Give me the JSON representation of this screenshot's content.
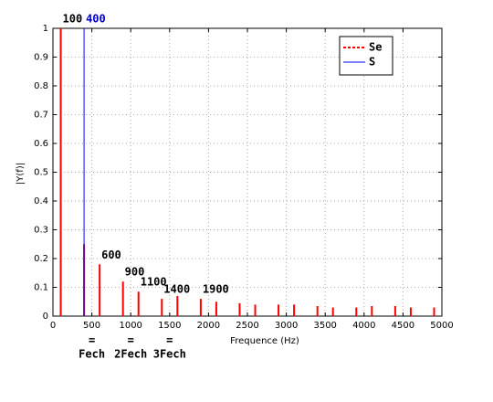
{
  "chart_data": {
    "type": "stem",
    "xlabel": "Frequence (Hz)",
    "ylabel": "|Y(f)|",
    "xlim": [
      0,
      5000
    ],
    "ylim": [
      0,
      1
    ],
    "xticks": [
      0,
      500,
      1000,
      1500,
      2000,
      2500,
      3000,
      3500,
      4000,
      4500,
      5000
    ],
    "yticks": [
      0,
      0.1,
      0.2,
      0.3,
      0.4,
      0.5,
      0.6,
      0.7,
      0.8,
      0.9,
      1
    ],
    "grid": true,
    "legend": "upper right",
    "series": [
      {
        "name": "Se",
        "color": "#ff0000",
        "line_style": "dashed",
        "x": [
          100,
          400,
          600,
          900,
          1100,
          1400,
          1600,
          1900,
          2100,
          2400,
          2600,
          2900,
          3100,
          3400,
          3600,
          3900,
          4100,
          4400,
          4600,
          4900
        ],
        "values": [
          1,
          0.25,
          0.18,
          0.12,
          0.085,
          0.06,
          0.07,
          0.06,
          0.05,
          0.045,
          0.04,
          0.04,
          0.04,
          0.035,
          0.03,
          0.03,
          0.035,
          0.035,
          0.03,
          0.03
        ]
      },
      {
        "name": "S",
        "color": "#0000ff",
        "line_style": "solid",
        "x": [
          400
        ],
        "values": [
          1
        ]
      }
    ],
    "annotations": [
      {
        "text": "100",
        "x": 100,
        "color": "#000000"
      },
      {
        "text": "400",
        "x": 400,
        "color": "#0000cc"
      },
      {
        "text": "600",
        "x": 600,
        "color": "#000000"
      },
      {
        "text": "900",
        "x": 900,
        "color": "#000000"
      },
      {
        "text": "1100",
        "x": 1100,
        "color": "#000000"
      },
      {
        "text": "1400",
        "x": 1400,
        "color": "#000000"
      },
      {
        "text": "1900",
        "x": 1900,
        "color": "#000000"
      }
    ],
    "xtick_notes": [
      {
        "x": 500,
        "lines": [
          "=",
          "Fech"
        ]
      },
      {
        "x": 1000,
        "lines": [
          "=",
          "2Fech"
        ]
      },
      {
        "x": 1500,
        "lines": [
          "=",
          "3Fech"
        ]
      }
    ]
  }
}
